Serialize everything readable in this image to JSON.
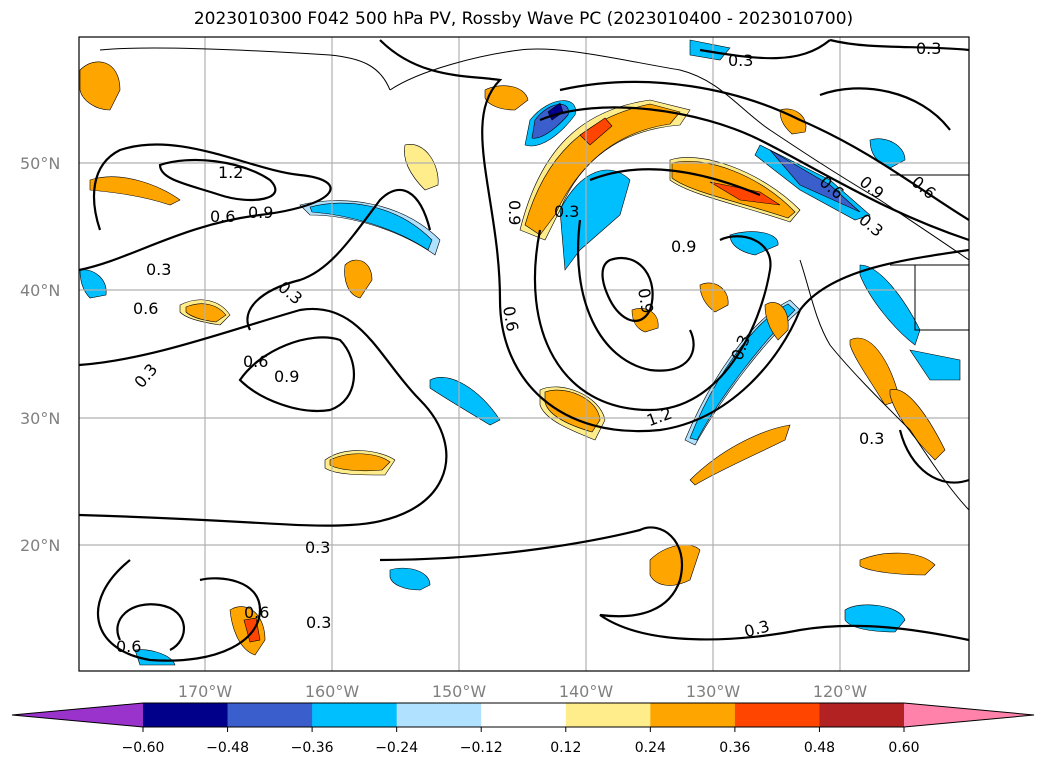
{
  "title": "2023010300 F042 500 hPa PV, Rossby Wave PC (2023010400 - 2023010700)",
  "lat_labels": [
    "50°N",
    "40°N",
    "30°N",
    "20°N"
  ],
  "lon_labels": [
    "170°W",
    "160°W",
    "150°W",
    "140°W",
    "130°W",
    "120°W"
  ],
  "colorbar": {
    "ticks": [
      "−0.60",
      "−0.48",
      "−0.36",
      "−0.24",
      "−0.12",
      "0.12",
      "0.24",
      "0.36",
      "0.48",
      "0.60"
    ],
    "colors": [
      "#9933cc",
      "#00008b",
      "#3a5fcd",
      "#00bfff",
      "#b0e2ff",
      "#ffffff",
      "#ffec8b",
      "#ffa500",
      "#ff4500",
      "#b22222",
      "#ff82ab"
    ]
  },
  "contour_labels": [
    "1.2",
    "0.6",
    "0.9",
    "0.3",
    "0.3",
    "0.6",
    "0.3",
    "0.6",
    "0.9",
    "0.3",
    "0.6",
    "0.3",
    "0.6",
    "0.9",
    "0.3",
    "0.6",
    "0.9",
    "0.9",
    "0.3",
    "1.2",
    "0.3",
    "0.3",
    "0.6",
    "0.9",
    "0.6",
    "0.3",
    "0.3",
    "0.3"
  ]
}
